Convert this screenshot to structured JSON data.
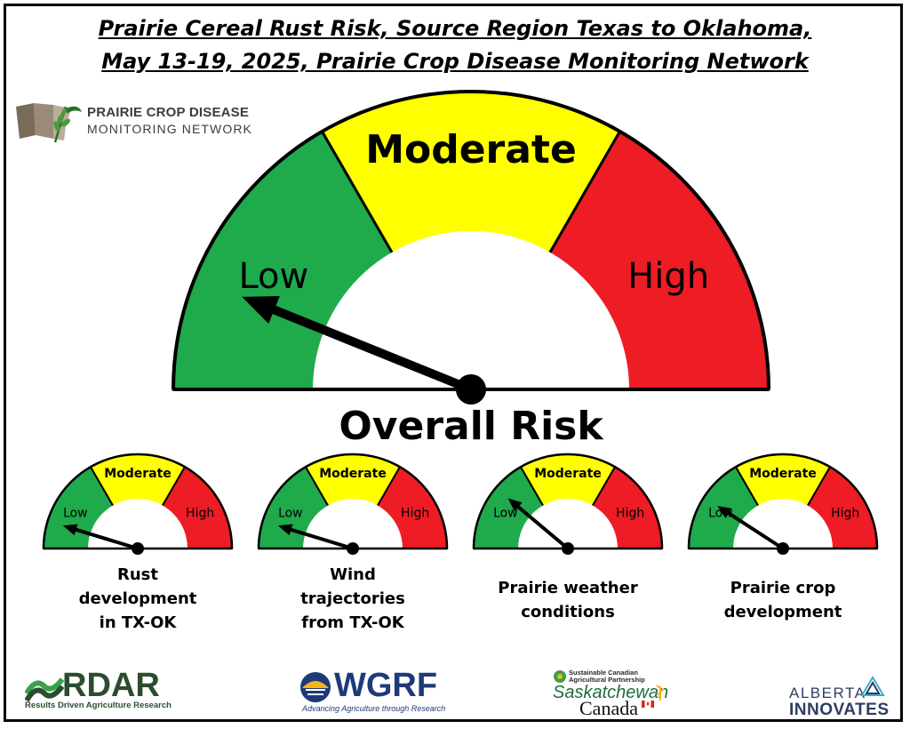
{
  "title": {
    "line1": "Prairie Cereal Rust Risk, Source Region Texas to Oklahoma,",
    "line2": "May 13-19, 2025, Prairie Crop Disease Monitoring Network"
  },
  "network_logo": {
    "line1": "PRAIRIE CROP DISEASE",
    "line2": "MONITORING NETWORK"
  },
  "colors": {
    "low": "#1faa4b",
    "moderate": "#ffff00",
    "high": "#ee1c24",
    "outline": "#000000"
  },
  "overall_gauge": {
    "label": "Overall Risk",
    "low_label": "Low",
    "moderate_label": "Moderate",
    "high_label": "High",
    "needle_angle_deg": 158
  },
  "factor_gauges": [
    {
      "caption": "Rust development in TX-OK",
      "low_label": "Low",
      "moderate_label": "Moderate",
      "high_label": "High",
      "needle_angle_deg": 163
    },
    {
      "caption": "Wind trajectories from TX-OK",
      "low_label": "Low",
      "moderate_label": "Moderate",
      "high_label": "High",
      "needle_angle_deg": 163
    },
    {
      "caption": "Prairie weather conditions",
      "low_label": "Low",
      "moderate_label": "Moderate",
      "high_label": "High",
      "needle_angle_deg": 140
    },
    {
      "caption": "Prairie crop development",
      "low_label": "Low",
      "moderate_label": "Moderate",
      "high_label": "High",
      "needle_angle_deg": 147
    }
  ],
  "factor_captions": [
    [
      "Rust",
      "development",
      "in TX-OK"
    ],
    [
      "Wind",
      "trajectories",
      "from TX-OK"
    ],
    [
      "Prairie weather",
      "conditions"
    ],
    [
      "Prairie crop",
      "development"
    ]
  ],
  "sponsors": {
    "rdar": {
      "name": "RDAR",
      "tagline": "Results Driven Agriculture Research"
    },
    "wgrf": {
      "name": "WGRF",
      "tagline": "Advancing Agriculture through Research"
    },
    "scap": {
      "tagline_line1": "Sustainable Canadian",
      "tagline_line2": "Agricultural Partnership",
      "name1": "Saskatchewan",
      "name2": "Canada"
    },
    "alberta": {
      "line1": "ALBERTA",
      "line2": "INNOVATES"
    }
  }
}
